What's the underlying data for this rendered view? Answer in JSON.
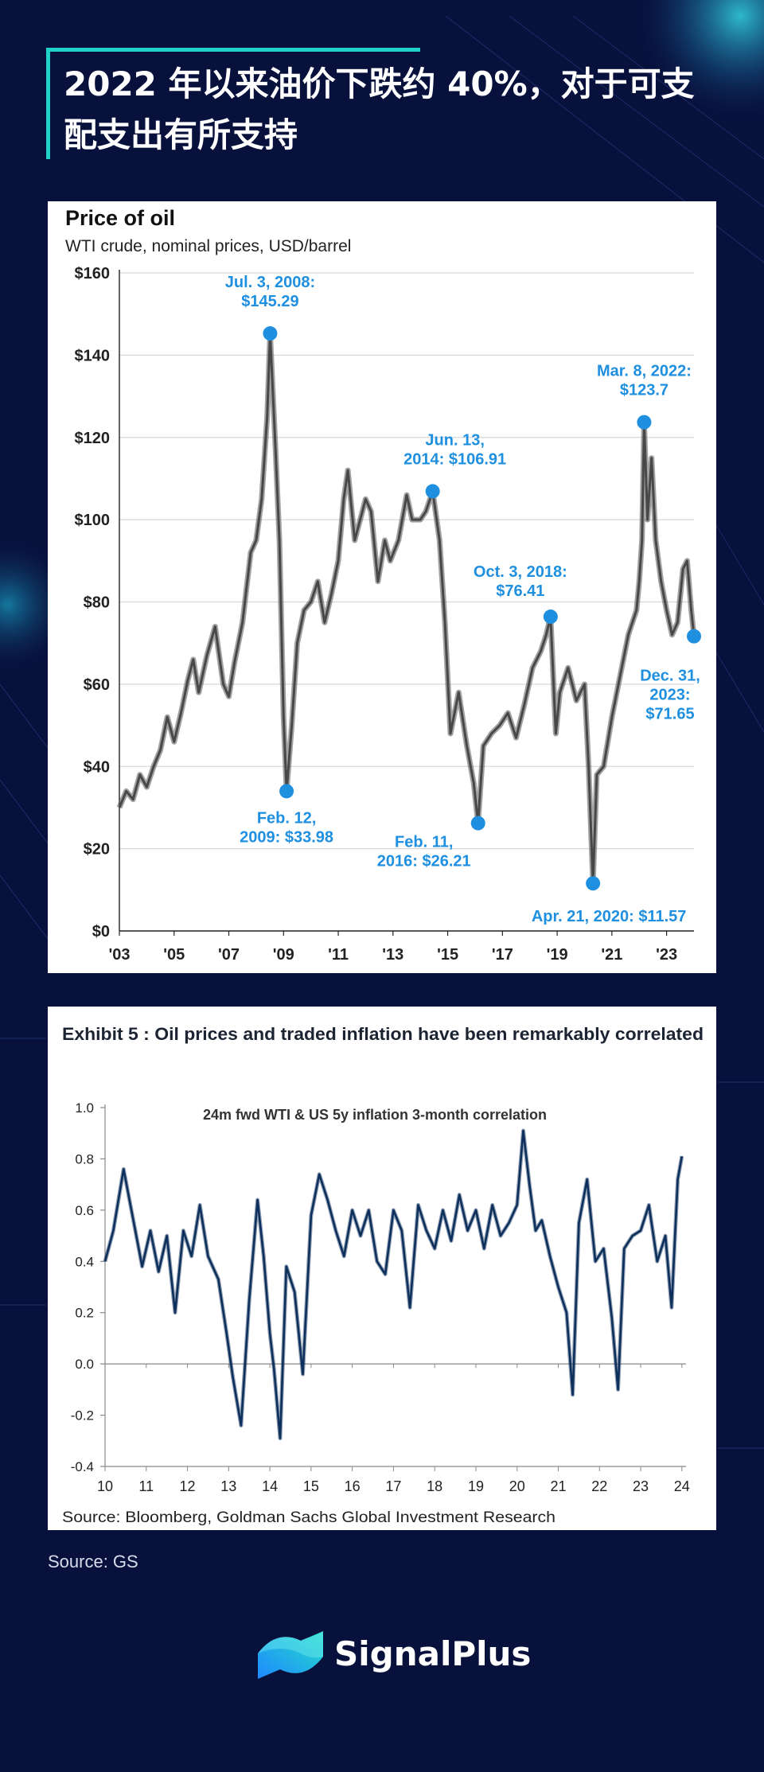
{
  "page": {
    "title": "2022 年以来油价下跌约 40%，对于可支配支出有所支持",
    "source": "Source: GS",
    "brand": "SignalPlus",
    "colors": {
      "background": "#08103c",
      "accent": "#1fd1c6",
      "oil_line": "#4a4a4a",
      "annotation": "#1f8fe0",
      "corr_line": "#0d2f5c"
    }
  },
  "chart_data": [
    {
      "type": "line",
      "title": "Price of oil",
      "subtitle": "WTI crude, nominal prices, USD/barrel",
      "ylim": [
        0,
        160
      ],
      "yticks": [
        0,
        20,
        40,
        60,
        80,
        100,
        120,
        140,
        160
      ],
      "ytick_labels": [
        "$0",
        "$20",
        "$40",
        "$60",
        "$80",
        "$100",
        "$120",
        "$140",
        "$160"
      ],
      "xlim": [
        2003,
        2024
      ],
      "xticks": [
        2003,
        2005,
        2007,
        2009,
        2011,
        2013,
        2015,
        2017,
        2019,
        2021,
        2023
      ],
      "xtick_labels": [
        "'03",
        "'05",
        "'07",
        "'09",
        "'11",
        "'13",
        "'15",
        "'17",
        "'19",
        "'21",
        "'23"
      ],
      "series": [
        {
          "name": "WTI crude",
          "x": [
            2003.0,
            2003.25,
            2003.5,
            2003.75,
            2004.0,
            2004.25,
            2004.5,
            2004.75,
            2005.0,
            2005.25,
            2005.5,
            2005.7,
            2005.9,
            2006.2,
            2006.5,
            2006.8,
            2007.0,
            2007.2,
            2007.5,
            2007.8,
            2008.0,
            2008.2,
            2008.4,
            2008.51,
            2008.7,
            2008.85,
            2009.0,
            2009.11,
            2009.3,
            2009.5,
            2009.75,
            2010.0,
            2010.25,
            2010.5,
            2010.75,
            2011.0,
            2011.2,
            2011.35,
            2011.6,
            2011.8,
            2012.0,
            2012.2,
            2012.45,
            2012.7,
            2012.9,
            2013.2,
            2013.5,
            2013.7,
            2014.0,
            2014.2,
            2014.45,
            2014.7,
            2014.9,
            2015.1,
            2015.4,
            2015.7,
            2015.95,
            2016.11,
            2016.3,
            2016.6,
            2016.9,
            2017.2,
            2017.5,
            2017.8,
            2018.1,
            2018.4,
            2018.6,
            2018.76,
            2018.95,
            2019.1,
            2019.4,
            2019.7,
            2020.0,
            2020.15,
            2020.31,
            2020.45,
            2020.7,
            2021.0,
            2021.3,
            2021.6,
            2021.9,
            2022.0,
            2022.1,
            2022.18,
            2022.3,
            2022.45,
            2022.6,
            2022.8,
            2023.0,
            2023.2,
            2023.4,
            2023.6,
            2023.75,
            2023.9,
            2024.0
          ],
          "values": [
            30,
            34,
            32,
            38,
            35,
            40,
            44,
            52,
            46,
            53,
            61,
            66,
            58,
            67,
            74,
            60,
            57,
            65,
            75,
            92,
            95,
            105,
            125,
            145.29,
            118,
            95,
            52,
            33.98,
            50,
            70,
            78,
            80,
            85,
            75,
            82,
            90,
            105,
            112,
            95,
            100,
            105,
            102,
            85,
            95,
            90,
            95,
            106,
            100,
            100,
            102,
            106.91,
            95,
            75,
            48,
            58,
            45,
            36,
            26.21,
            45,
            48,
            50,
            53,
            47,
            55,
            64,
            68,
            72,
            76.41,
            48,
            58,
            64,
            56,
            60,
            40,
            11.57,
            38,
            40,
            52,
            62,
            72,
            78,
            85,
            95,
            123.7,
            100,
            115,
            95,
            85,
            78,
            72,
            75,
            88,
            90,
            78,
            71.65
          ]
        }
      ],
      "annotations": [
        {
          "lines": [
            "Jul. 3, 2008:",
            "$145.29"
          ],
          "x": 2008.51,
          "y": 145.29
        },
        {
          "lines": [
            "Feb. 12,",
            "2009: $33.98"
          ],
          "x": 2009.11,
          "y": 33.98
        },
        {
          "lines": [
            "Jun. 13,",
            "2014: $106.91"
          ],
          "x": 2014.45,
          "y": 106.91
        },
        {
          "lines": [
            "Feb. 11,",
            "2016: $26.21"
          ],
          "x": 2016.11,
          "y": 26.21
        },
        {
          "lines": [
            "Oct. 3, 2018:",
            "$76.41"
          ],
          "x": 2018.76,
          "y": 76.41
        },
        {
          "lines": [
            "Apr. 21, 2020: $11.57"
          ],
          "x": 2020.31,
          "y": 11.57
        },
        {
          "lines": [
            "Mar. 8, 2022:",
            "$123.7"
          ],
          "x": 2022.18,
          "y": 123.7
        },
        {
          "lines": [
            "Dec. 31,",
            "2023:",
            "$71.65"
          ],
          "x": 2024.0,
          "y": 71.65
        }
      ]
    },
    {
      "type": "line",
      "title": "Exhibit 5 : Oil prices and traded inflation have been remarkably correlated",
      "subtitle": "24m fwd WTI & US 5y inflation 3-month correlation",
      "source": "Source: Bloomberg, Goldman Sachs Global Investment Research",
      "ylim": [
        -0.4,
        1.0
      ],
      "yticks": [
        -0.4,
        -0.2,
        0.0,
        0.2,
        0.4,
        0.6,
        0.8,
        1.0
      ],
      "ytick_labels": [
        "-0.4",
        "-0.2",
        "0.0",
        "0.2",
        "0.4",
        "0.6",
        "0.8",
        "1.0"
      ],
      "xlim": [
        2010,
        2024.1
      ],
      "xticks": [
        2010,
        2011,
        2012,
        2013,
        2014,
        2015,
        2016,
        2017,
        2018,
        2019,
        2020,
        2021,
        2022,
        2023,
        2024
      ],
      "xtick_labels": [
        "10",
        "11",
        "12",
        "13",
        "14",
        "15",
        "16",
        "17",
        "18",
        "19",
        "20",
        "21",
        "22",
        "23",
        "24"
      ],
      "series": [
        {
          "name": "3-month correlation",
          "x": [
            2010.0,
            2010.2,
            2010.45,
            2010.7,
            2010.9,
            2011.1,
            2011.3,
            2011.5,
            2011.7,
            2011.9,
            2012.1,
            2012.3,
            2012.5,
            2012.75,
            2012.95,
            2013.1,
            2013.3,
            2013.5,
            2013.7,
            2013.85,
            2014.0,
            2014.1,
            2014.25,
            2014.4,
            2014.6,
            2014.8,
            2015.0,
            2015.2,
            2015.4,
            2015.6,
            2015.8,
            2016.0,
            2016.2,
            2016.4,
            2016.6,
            2016.8,
            2017.0,
            2017.2,
            2017.4,
            2017.6,
            2017.8,
            2018.0,
            2018.2,
            2018.4,
            2018.6,
            2018.8,
            2019.0,
            2019.2,
            2019.4,
            2019.6,
            2019.8,
            2020.0,
            2020.15,
            2020.3,
            2020.45,
            2020.6,
            2020.8,
            2021.0,
            2021.2,
            2021.35,
            2021.5,
            2021.7,
            2021.9,
            2022.1,
            2022.3,
            2022.45,
            2022.6,
            2022.8,
            2023.0,
            2023.2,
            2023.4,
            2023.6,
            2023.75,
            2023.9,
            2024.0
          ],
          "values": [
            0.4,
            0.52,
            0.76,
            0.55,
            0.38,
            0.52,
            0.36,
            0.5,
            0.2,
            0.52,
            0.42,
            0.62,
            0.42,
            0.33,
            0.12,
            -0.05,
            -0.24,
            0.25,
            0.64,
            0.42,
            0.12,
            -0.02,
            -0.29,
            0.38,
            0.28,
            -0.04,
            0.58,
            0.74,
            0.64,
            0.52,
            0.42,
            0.6,
            0.5,
            0.6,
            0.4,
            0.35,
            0.6,
            0.52,
            0.22,
            0.62,
            0.52,
            0.45,
            0.6,
            0.48,
            0.66,
            0.52,
            0.6,
            0.45,
            0.62,
            0.5,
            0.55,
            0.62,
            0.91,
            0.7,
            0.52,
            0.56,
            0.42,
            0.3,
            0.2,
            -0.12,
            0.55,
            0.72,
            0.4,
            0.45,
            0.18,
            -0.1,
            0.45,
            0.5,
            0.52,
            0.62,
            0.4,
            0.5,
            0.22,
            0.72,
            0.81
          ]
        }
      ]
    }
  ]
}
